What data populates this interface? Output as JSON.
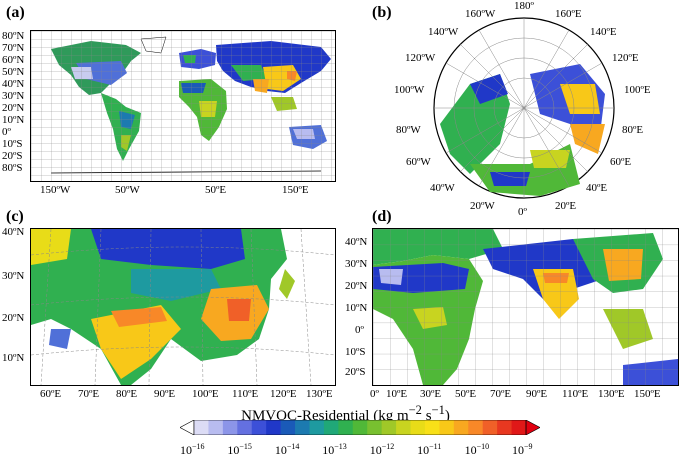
{
  "panels": {
    "a": {
      "label": "(a)",
      "lat_labels": [
        "80ºN",
        "70ºN",
        "60ºN",
        "50ºN",
        "40ºN",
        "30ºN",
        "20ºN",
        "10ºN",
        "0º",
        "10ºS",
        "20ºS",
        "30ºS",
        "40ºS",
        "50ºS",
        "60ºS",
        "80ºS"
      ],
      "lon_labels": [
        "150ºW",
        "50ºW",
        "50ºE",
        "150ºE"
      ]
    },
    "b": {
      "label": "(b)",
      "lon_labels": [
        "180º",
        "160ºW",
        "160ºE",
        "140ºW",
        "140ºE",
        "120ºW",
        "120ºE",
        "100ºW",
        "100ºE",
        "80ºW",
        "80ºE",
        "60ºW",
        "60ºE",
        "40ºW",
        "40ºE",
        "20ºW",
        "20ºE",
        "0º"
      ]
    },
    "c": {
      "label": "(c)",
      "lat_labels": [
        "40ºN",
        "30ºN",
        "20ºN",
        "10ºN"
      ],
      "lon_labels": [
        "60ºE",
        "70ºE",
        "80ºE",
        "90ºE",
        "100ºE",
        "110ºE",
        "120ºE",
        "130ºE"
      ]
    },
    "d": {
      "label": "(d)",
      "lat_labels": [
        "40ºN",
        "30ºN",
        "20ºN",
        "10ºN",
        "0º",
        "10ºS",
        "20ºS"
      ],
      "lon_labels": [
        "0º",
        "10ºE",
        "30ºE",
        "50ºE",
        "70ºE",
        "90ºE",
        "110ºE",
        "130ºE",
        "150ºE"
      ]
    }
  },
  "colorbar": {
    "title": "NMVOC-Residential (kg m",
    "title_sup1": "−2",
    "title_mid": " s",
    "title_sup2": "−1",
    "title_end": ")",
    "labels": [
      {
        "base": "10",
        "exp": "−16"
      },
      {
        "base": "10",
        "exp": "−15"
      },
      {
        "base": "10",
        "exp": "−14"
      },
      {
        "base": "10",
        "exp": "−13"
      },
      {
        "base": "10",
        "exp": "−12"
      },
      {
        "base": "10",
        "exp": "−11"
      },
      {
        "base": "10",
        "exp": "−10"
      },
      {
        "base": "10",
        "exp": "−9"
      }
    ],
    "colors": [
      "#ffffff",
      "#dcdcf5",
      "#b8bcf0",
      "#8c95e8",
      "#6470e0",
      "#3c50d8",
      "#2038c8",
      "#1a5ab8",
      "#1c7ab0",
      "#1e9aa0",
      "#20a878",
      "#30b050",
      "#50b838",
      "#78c030",
      "#a0c828",
      "#c8d420",
      "#e8dc18",
      "#f8e018",
      "#f8c818",
      "#f8a820",
      "#f88828",
      "#f06028",
      "#e83820",
      "#e01818",
      "#e00010"
    ]
  }
}
